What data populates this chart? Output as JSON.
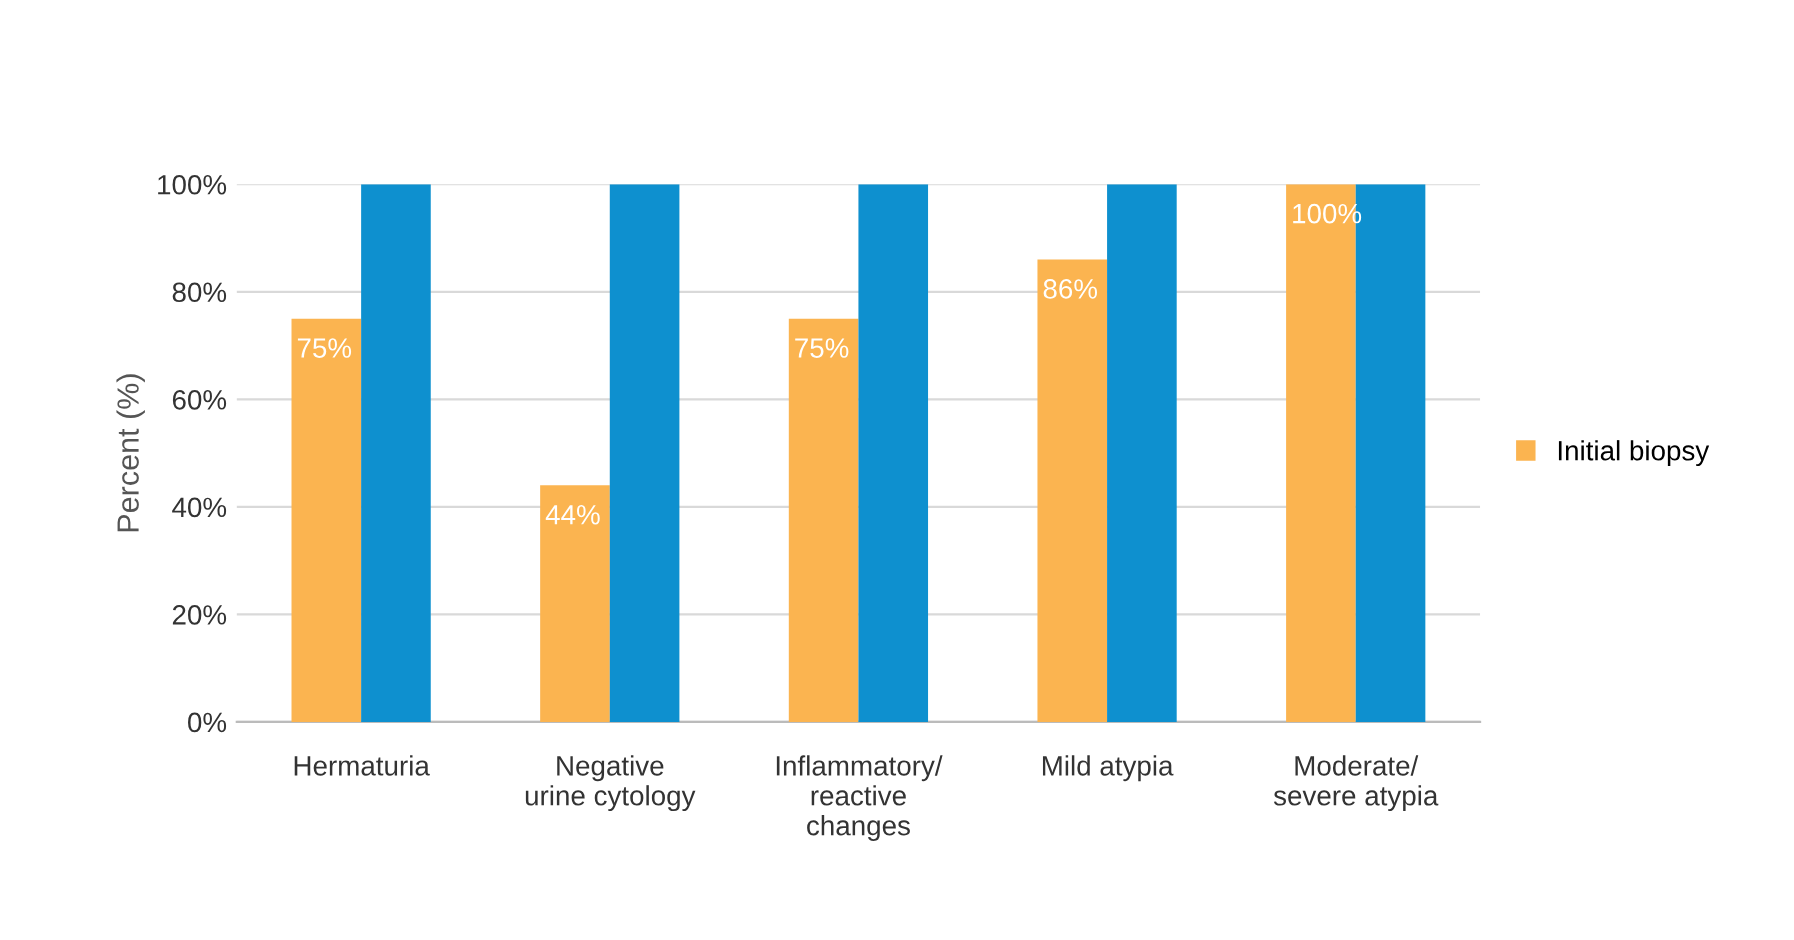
{
  "chart_data": {
    "type": "bar",
    "ylabel": "Percent (%)",
    "categories": [
      "Hermaturia",
      "Negative\nurine cytology",
      "Inflammatory/\nreactive\nchanges",
      "Mild atypia",
      "Moderate/\nsevere atypia"
    ],
    "series": [
      {
        "name": "Initial biopsy",
        "color": "#fbb450",
        "values": [
          75,
          44,
          75,
          86,
          100
        ],
        "value_labels": [
          "75%",
          "44%",
          "75%",
          "86%",
          "100%"
        ]
      },
      {
        "color": "#0e90cf",
        "values": [
          100,
          100,
          100,
          100,
          100
        ]
      }
    ],
    "ylim": [
      0,
      100
    ],
    "yticks": [
      {
        "value": 0,
        "label": "0%"
      },
      {
        "value": 20,
        "label": "20%"
      },
      {
        "value": 40,
        "label": "40%"
      },
      {
        "value": 60,
        "label": "60%"
      },
      {
        "value": 80,
        "label": "80%"
      },
      {
        "value": 100,
        "label": "100%"
      }
    ],
    "grid": "y",
    "legend": "right"
  }
}
